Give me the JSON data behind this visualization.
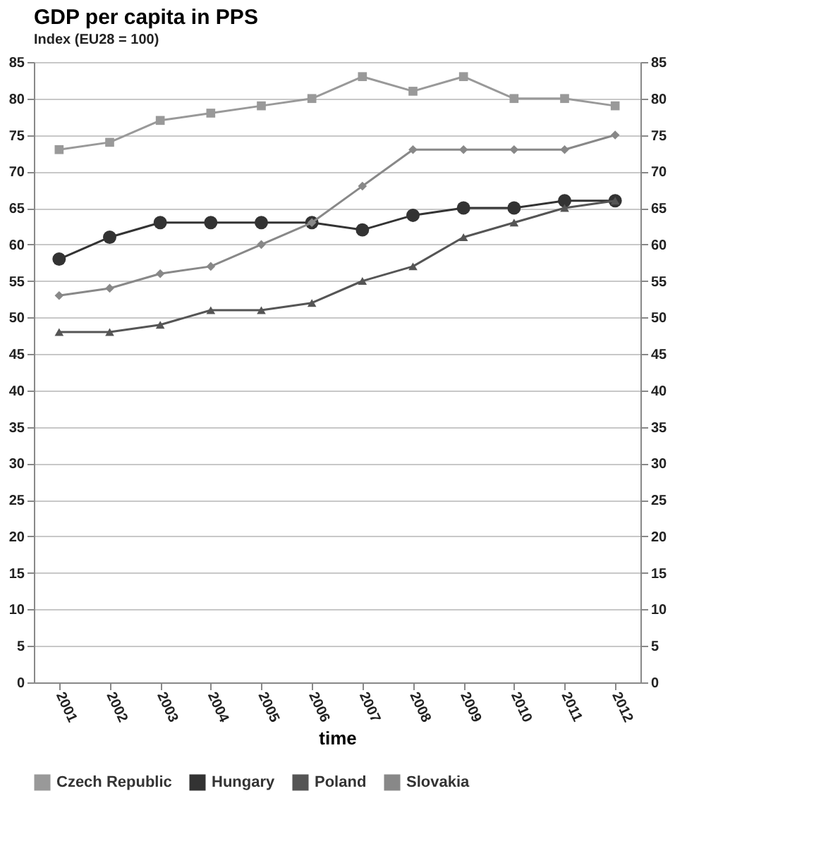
{
  "chart_data": {
    "type": "line",
    "title": "GDP per capita in PPS",
    "subtitle": "Index (EU28 = 100)",
    "xlabel": "time",
    "categories": [
      "2001",
      "2002",
      "2003",
      "2004",
      "2005",
      "2006",
      "2007",
      "2008",
      "2009",
      "2010",
      "2011",
      "2012"
    ],
    "series": [
      {
        "name": "Czech Republic",
        "color": "#999999",
        "marker": "square",
        "values": [
          73,
          74,
          77,
          78,
          79,
          80,
          83,
          81,
          83,
          80,
          80,
          79
        ]
      },
      {
        "name": "Hungary",
        "color": "#333333",
        "marker": "circle",
        "values": [
          58,
          61,
          63,
          63,
          63,
          63,
          62,
          64,
          65,
          65,
          66,
          66
        ]
      },
      {
        "name": "Poland",
        "color": "#555555",
        "marker": "triangle",
        "values": [
          48,
          48,
          49,
          51,
          51,
          52,
          55,
          57,
          61,
          63,
          65,
          66
        ]
      },
      {
        "name": "Slovakia",
        "color": "#888888",
        "marker": "diamond",
        "values": [
          53,
          54,
          56,
          57,
          60,
          63,
          68,
          73,
          73,
          73,
          73,
          75
        ],
        "axis": "y2"
      }
    ],
    "ylim": [
      0,
      85
    ],
    "yticks": [
      0,
      5,
      10,
      15,
      20,
      25,
      30,
      35,
      40,
      45,
      50,
      55,
      60,
      65,
      70,
      75,
      80,
      85
    ],
    "y2lim": [
      0,
      85
    ],
    "y2ticks": [
      0,
      5,
      10,
      15,
      20,
      25,
      30,
      35,
      40,
      45,
      50,
      55,
      60,
      65,
      70,
      75,
      80,
      85
    ],
    "grid": "y",
    "legend": "bottom",
    "line_style": "solid"
  }
}
